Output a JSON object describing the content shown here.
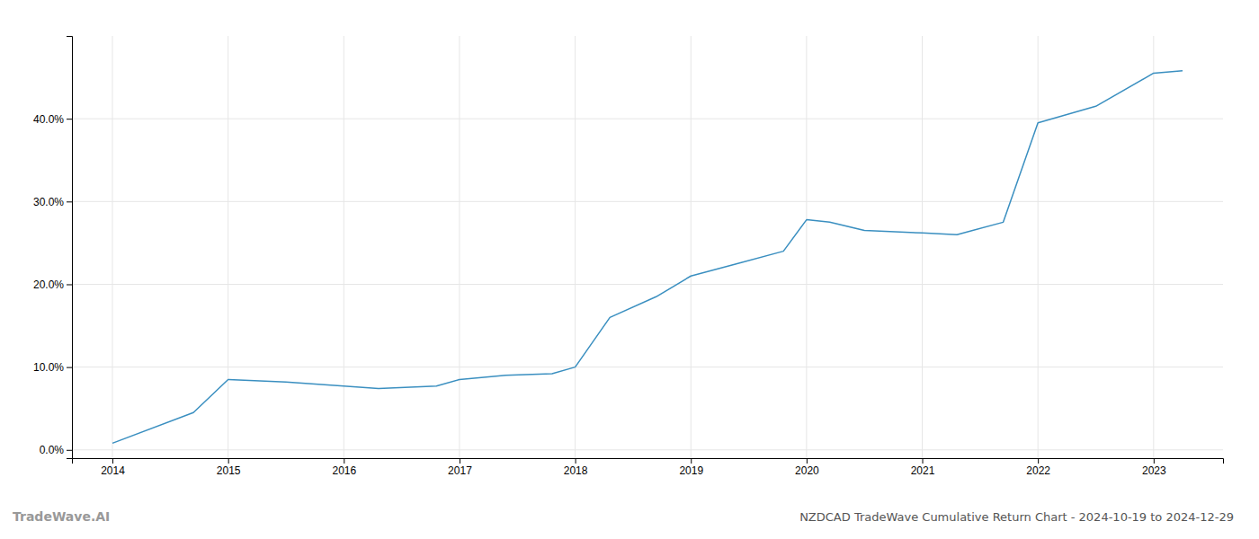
{
  "chart_data": {
    "type": "line",
    "title": "NZDCAD TradeWave Cumulative Return Chart - 2024-10-19 to 2024-12-29",
    "annotations": [
      "TradeWave.AI"
    ],
    "x": [
      2014.0,
      2014.7,
      2015.0,
      2015.5,
      2016.0,
      2016.3,
      2016.8,
      2017.0,
      2017.4,
      2017.8,
      2018.0,
      2018.3,
      2018.7,
      2019.0,
      2019.4,
      2019.8,
      2020.0,
      2020.2,
      2020.5,
      2021.0,
      2021.3,
      2021.7,
      2022.0,
      2022.5,
      2023.0,
      2023.25
    ],
    "values": [
      0.8,
      4.5,
      8.5,
      8.2,
      7.7,
      7.4,
      7.7,
      8.5,
      9.0,
      9.2,
      10.0,
      16.0,
      18.5,
      21.0,
      22.5,
      24.0,
      27.8,
      27.5,
      26.5,
      26.2,
      26.0,
      27.5,
      39.5,
      41.5,
      45.5,
      45.8
    ],
    "color": "#3a8fc0",
    "xlim": [
      2013.65,
      2023.6
    ],
    "xticks": [
      2014,
      2015,
      2016,
      2017,
      2018,
      2019,
      2020,
      2021,
      2022,
      2023
    ],
    "ylim": [
      -1,
      50
    ],
    "yticks": [
      {
        "value": 0,
        "label": "0.0%"
      },
      {
        "value": 10,
        "label": "10.0%"
      },
      {
        "value": 20,
        "label": "20.0%"
      },
      {
        "value": 30,
        "label": "30.0%"
      },
      {
        "value": 40,
        "label": "40.0%"
      }
    ],
    "grid": true
  }
}
